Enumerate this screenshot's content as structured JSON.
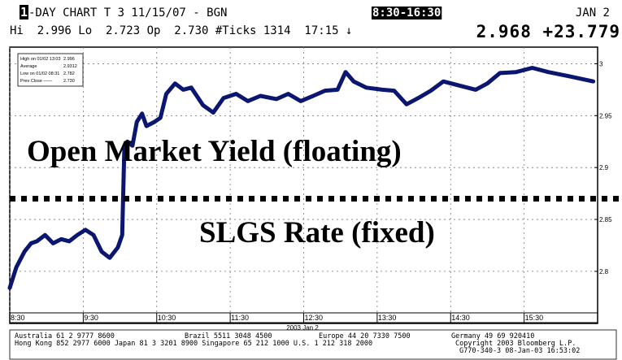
{
  "header": {
    "title_box": "1",
    "title": "-DAY CHART T 3 11/15/07 - BGN",
    "time_range": "8:30-16:30",
    "date": "JAN 2",
    "stats": "Hi  2.996 Lo  2.723 Op  2.730 #Ticks 1314  17:15 ↓",
    "last": "2.968 +23.779"
  },
  "chart_data": {
    "type": "line",
    "x": [
      8.5,
      8.59,
      8.7,
      8.79,
      8.87,
      8.98,
      9.09,
      9.2,
      9.31,
      9.42,
      9.53,
      9.64,
      9.75,
      9.86,
      9.97,
      10.03,
      10.06,
      10.1,
      10.17,
      10.23,
      10.3,
      10.36,
      10.47,
      10.55,
      10.63,
      10.75,
      10.86,
      10.97,
      11.13,
      11.27,
      11.41,
      11.58,
      11.74,
      11.91,
      12.13,
      12.29,
      12.46,
      12.63,
      12.79,
      12.96,
      13.07,
      13.18,
      13.35,
      13.57,
      13.73,
      13.9,
      14.06,
      14.23,
      14.4,
      14.62,
      14.84,
      15.0,
      15.17,
      15.39,
      15.61,
      15.83,
      16.11,
      16.44
    ],
    "series": [
      {
        "color": "#0b1670",
        "values": [
          2.784,
          2.804,
          2.819,
          2.827,
          2.829,
          2.835,
          2.827,
          2.831,
          2.829,
          2.835,
          2.84,
          2.835,
          2.819,
          2.813,
          2.823,
          2.835,
          2.921,
          2.925,
          2.921,
          2.944,
          2.952,
          2.94,
          2.944,
          2.948,
          2.971,
          2.981,
          2.975,
          2.977,
          2.96,
          2.953,
          2.967,
          2.971,
          2.964,
          2.969,
          2.966,
          2.971,
          2.964,
          2.969,
          2.974,
          2.975,
          2.992,
          2.983,
          2.977,
          2.975,
          2.974,
          2.961,
          2.967,
          2.974,
          2.983,
          2.979,
          2.975,
          2.981,
          2.991,
          2.992,
          2.996,
          2.992,
          2.988,
          2.983
        ]
      }
    ],
    "xlim": [
      8.5,
      16.5
    ],
    "xticks": [
      {
        "value": 8.5,
        "label": "8:30"
      },
      {
        "value": 9.5,
        "label": "9:30"
      },
      {
        "value": 10.5,
        "label": "10:30"
      },
      {
        "value": 11.5,
        "label": "11:30"
      },
      {
        "value": 12.5,
        "label": "12:30"
      },
      {
        "value": 13.5,
        "label": "13:30"
      },
      {
        "value": 14.5,
        "label": "14:30"
      },
      {
        "value": 15.5,
        "label": "15:30"
      }
    ],
    "ylim": [
      2.76,
      3.016
    ],
    "yticks": [
      2.8,
      2.85,
      2.9,
      2.95,
      3
    ],
    "grid": true,
    "x_axis_label": "2003 Jan 2",
    "legend_rows": [
      [
        "High on 01/02 13:03",
        "2.996"
      ],
      [
        "Average",
        "2.9312"
      ],
      [
        "Low on 01/02 08:31",
        "2.782"
      ],
      [
        "Prev Close ——",
        "2.730"
      ]
    ],
    "reference_line": 2.87,
    "annotations": [
      "Open Market Yield (floating)",
      "SLGS Rate (fixed)"
    ]
  },
  "footer": {
    "lines": [
      [
        "Australia 61 2 9777 8600",
        "Brazil 5511 3048 4500",
        "Europe 44 20 7330 7500",
        "Germany 49 69 920410"
      ],
      [
        "Hong Kong 852 2977 6000 Japan 81 3 3201 8900 Singapore 65 212 1000 U.S. 1 212 318 2000",
        "Copyright 2003 Bloomberg L.P."
      ],
      [
        "G770-340-3 08-Jan-03 16:53:02"
      ]
    ]
  }
}
